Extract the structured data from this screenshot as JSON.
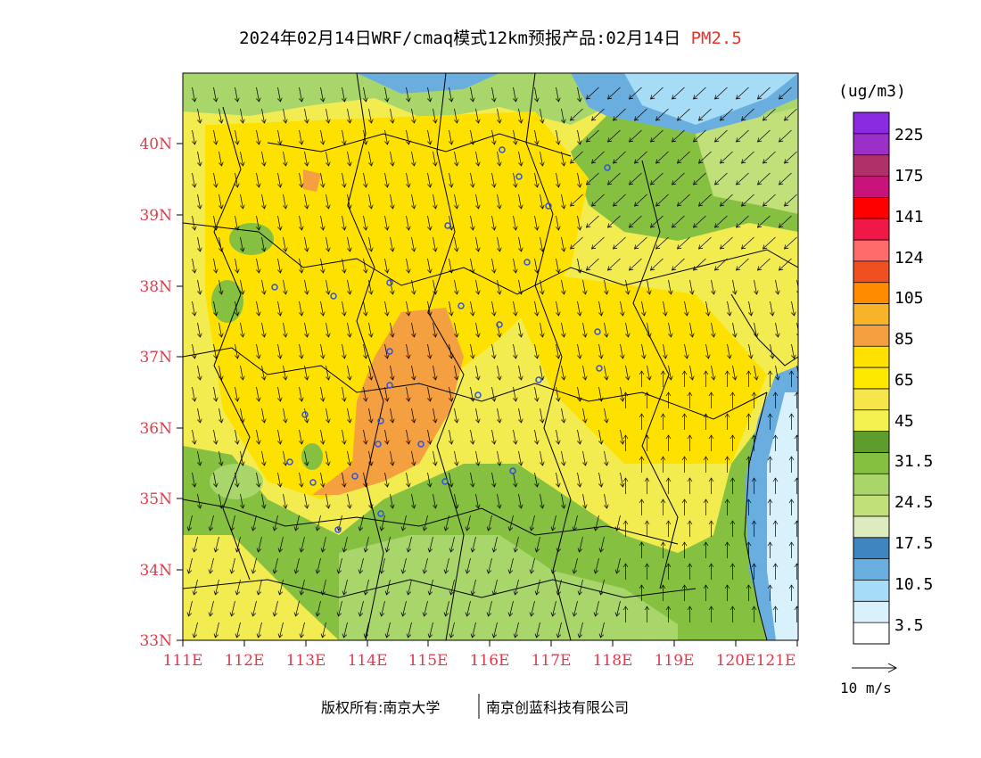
{
  "header": {
    "title": "2024年02月14日WRF/cmaq模式12km预报产品:02月14日",
    "pollutant": "PM2.5"
  },
  "map": {
    "lat_labels": [
      "40N",
      "39N",
      "38N",
      "37N",
      "36N",
      "35N",
      "34N",
      "33N"
    ],
    "lon_labels": [
      "111E",
      "112E",
      "113E",
      "114E",
      "115E",
      "116E",
      "117E",
      "118E",
      "119E",
      "120E",
      "121E"
    ],
    "station_marker_color": "#3050e0",
    "wind_vector_color": "#000000"
  },
  "legend": {
    "unit": "(ug/m3)",
    "labels": [
      "225",
      "175",
      "141",
      "124",
      "105",
      "85",
      "65",
      "45",
      "31.5",
      "24.5",
      "17.5",
      "10.5",
      "3.5"
    ],
    "colors": [
      "#8a2be2",
      "#9b30c8",
      "#b0306a",
      "#c8147a",
      "#ff0000",
      "#f01846",
      "#ff6a6a",
      "#f05020",
      "#ff8c00",
      "#f8b428",
      "#f5a040",
      "#ffe100",
      "#ffe800",
      "#f7e64a",
      "#f2f250",
      "#5e9c2e",
      "#86c040",
      "#a9d66a",
      "#c2e07a",
      "#dcecbe",
      "#3f86c0",
      "#6aaee0",
      "#a6dcf5",
      "#d9f1fb",
      "#ffffff"
    ],
    "ref_vector_label": "10 m/s"
  },
  "footer": {
    "copyright_left": "版权所有:南京大学",
    "copyright_right": "南京创蓝科技有限公司"
  }
}
